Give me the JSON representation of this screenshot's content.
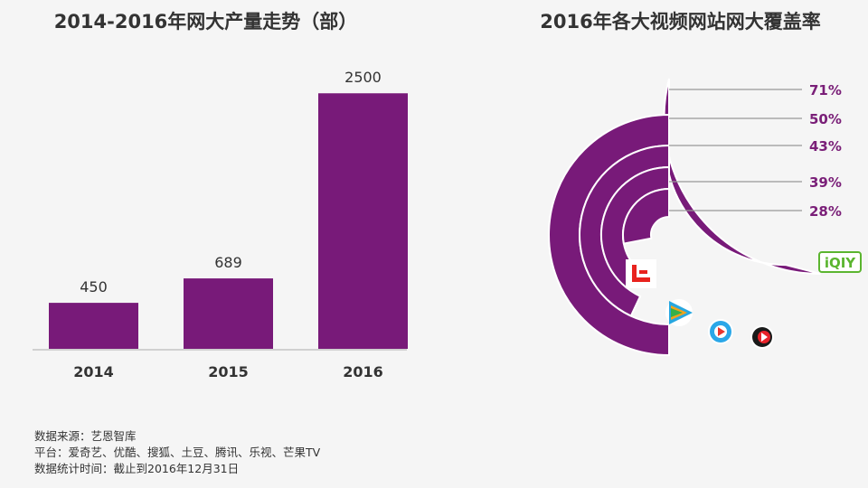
{
  "titles": {
    "bar_chart": "2014-2016年网大产量走势（部）",
    "radial_chart": "2016年各大视频网站网大覆盖率"
  },
  "source_notes": {
    "source": "数据来源：艺恩智库",
    "platforms": "平台：爱奇艺、优酷、搜狐、土豆、腾讯、乐视、芒果TV",
    "cutoff": "数据统计时间：截止到2016年12月31日"
  },
  "colors": {
    "bar": "#781a79",
    "label_purple": "#7a1f78",
    "axis": "#aaaaaa",
    "text": "#333333"
  },
  "chart_data": [
    {
      "type": "bar",
      "title": "2014-2016年网大产量走势（部）",
      "categories": [
        "2014",
        "2015",
        "2016"
      ],
      "values": [
        450,
        689,
        2500
      ],
      "data_labels": [
        "450",
        "689",
        "2500"
      ],
      "ylim": [
        0,
        2900
      ],
      "grid": false
    },
    {
      "type": "radial_bar",
      "title": "2016年各大视频网站网大覆盖率",
      "series": [
        {
          "platform_icon": "iqiyi-logo",
          "value": 71,
          "label": "71%"
        },
        {
          "platform_icon": "mango-tv-logo",
          "value": 50,
          "label": "50%"
        },
        {
          "platform_icon": "youku-logo",
          "value": 43,
          "label": "43%"
        },
        {
          "platform_icon": "tencent-video-logo",
          "value": 39,
          "label": "39%"
        },
        {
          "platform_icon": "letv-logo",
          "value": 28,
          "label": "28%"
        }
      ],
      "logo_texts": {
        "iqiyi": "iQIY"
      }
    }
  ]
}
